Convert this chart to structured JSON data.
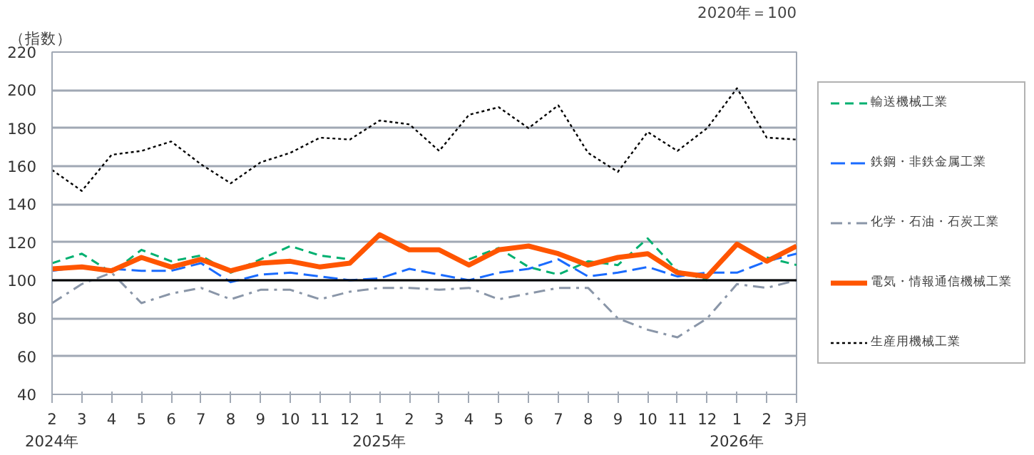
{
  "chart_data": {
    "type": "line",
    "ylabel": "（指数）",
    "annotations": [
      "2020年＝100"
    ],
    "categories": [
      "2\n2024年",
      "3",
      "4",
      "5",
      "6",
      "7",
      "8",
      "9",
      "10",
      "11",
      "12",
      "1\n2025年",
      "2",
      "3",
      "4",
      "5",
      "6",
      "7",
      "8",
      "9",
      "10",
      "11",
      "12",
      "1\n2026年",
      "2",
      "3月"
    ],
    "series": [
      {
        "name": "輸送機械工業",
        "color": "#00b070",
        "line_style": "dashed",
        "values": [
          109,
          114,
          104,
          116,
          110,
          113,
          104,
          111,
          118,
          113,
          111,
          null,
          null,
          null,
          111,
          117,
          107,
          103,
          110,
          108,
          122,
          105,
          100,
          null,
          112,
          108
        ]
      },
      {
        "name": "鉄鋼・非鉄金属工業",
        "color": "#1a6bff",
        "line_style": "longdash",
        "values": [
          105,
          107,
          106,
          105,
          105,
          109,
          99,
          103,
          104,
          102,
          100,
          101,
          106,
          103,
          100,
          104,
          106,
          111,
          102,
          104,
          107,
          102,
          104,
          104,
          110,
          114
        ]
      },
      {
        "name": "化学・石油・石炭工業",
        "color": "#8a96a8",
        "line_style": "dashdot",
        "values": [
          88,
          98,
          104,
          88,
          93,
          96,
          90,
          95,
          95,
          90,
          94,
          96,
          96,
          95,
          96,
          90,
          93,
          96,
          96,
          80,
          74,
          70,
          80,
          98,
          96,
          100
        ]
      },
      {
        "name": "電気・情報通信機械工業",
        "color": "#ff5500",
        "line_style": "solid",
        "values": [
          106,
          107,
          105,
          112,
          107,
          111,
          105,
          109,
          110,
          107,
          109,
          124,
          116,
          116,
          108,
          116,
          118,
          114,
          108,
          112,
          114,
          104,
          102,
          119,
          110,
          118
        ]
      },
      {
        "name": "生産用機械工業",
        "color": "#000000",
        "line_style": "dotted",
        "values": [
          158,
          147,
          166,
          168,
          173,
          161,
          151,
          162,
          167,
          175,
          174,
          184,
          182,
          168,
          187,
          191,
          180,
          192,
          167,
          157,
          178,
          168,
          180,
          201,
          175,
          174
        ]
      }
    ],
    "ylim": [
      40,
      220
    ],
    "yticks": [
      40,
      60,
      80,
      100,
      120,
      140,
      160,
      180,
      200,
      220
    ],
    "grid": "y",
    "ref_lines": [
      {
        "axis": "y",
        "value": 100,
        "color": "#000000"
      }
    ],
    "legend": "right"
  }
}
